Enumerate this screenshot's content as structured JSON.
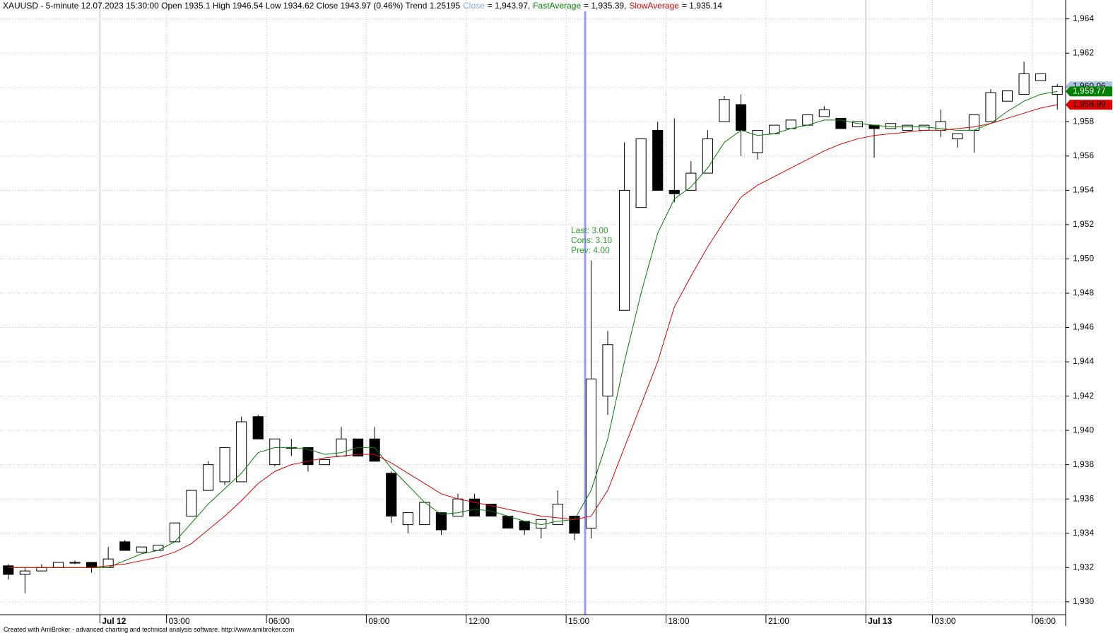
{
  "chart_data": {
    "type": "candlestick",
    "header": [
      {
        "text": "XAUUSD - 5-minute 12.07.2023 15:30:00 Open 1935.1 High 1946.54 Low 1934.62 Close 1943.97 (0.46%) Trend 1.25195",
        "color": "#000000"
      },
      {
        "text": "Close",
        "color": "#87a9c9"
      },
      {
        "text": "= 1,943.97,",
        "color": "#000000"
      },
      {
        "text": "FastAverage",
        "color": "#008000"
      },
      {
        "text": "= 1,935.39,",
        "color": "#000000"
      },
      {
        "text": "SlowAverage",
        "color": "#e00000"
      },
      {
        "text": "= 1,935.14",
        "color": "#000000"
      }
    ],
    "annotation": [
      "Last: 3.00",
      "Cons: 3.10",
      "Prev: 4.00"
    ],
    "annotation_color": "#2ca02c",
    "footer": "Created with AmiBroker - advanced charting and technical analysis software. http://www.amibroker.com",
    "categories": [
      null,
      null,
      null,
      null,
      null,
      null,
      "Jul 12",
      null,
      null,
      null,
      "03:00",
      null,
      null,
      null,
      null,
      null,
      "06:00",
      null,
      null,
      null,
      null,
      null,
      "09:00",
      null,
      null,
      null,
      null,
      null,
      "12:00",
      null,
      null,
      null,
      null,
      null,
      "15:00",
      null,
      null,
      null,
      null,
      null,
      "18:00",
      null,
      null,
      null,
      null,
      null,
      "21:00",
      null,
      null,
      null,
      null,
      null,
      "Jul 13",
      null,
      null,
      null,
      "03:00",
      null,
      null,
      null,
      null,
      null,
      "06:00",
      null
    ],
    "bold_categories": [
      "Jul 12",
      "Jul 13"
    ],
    "open": [
      1932.1,
      1931.6,
      1931.8,
      1932.0,
      1932.3,
      1932.3,
      1932.0,
      1933.5,
      1932.9,
      1933.0,
      1933.5,
      1935.0,
      1936.5,
      1937.0,
      1937.0,
      1940.8,
      1938.0,
      1939.0,
      1939.0,
      1938.0,
      1938.5,
      1939.5,
      1939.5,
      1937.5,
      1934.5,
      1934.5,
      1935.2,
      1935.0,
      1936.0,
      1935.7,
      1935.0,
      1934.7,
      1934.3,
      1934.5,
      1935.0,
      1934.3,
      1942.0,
      1947.0,
      1953.0,
      1957.5,
      1954.0,
      1954.0,
      1955.0,
      1958.0,
      1959.0,
      1956.2,
      1957.3,
      1957.6,
      1957.8,
      1958.3,
      1958.2,
      1957.7,
      1957.8,
      1957.6,
      1957.5,
      1957.5,
      1957.5,
      1957.0,
      1957.5,
      1958.0,
      1959.2,
      1959.6,
      1960.4,
      1959.6
    ],
    "high": [
      1932.2,
      1932.0,
      1932.2,
      1932.3,
      1932.4,
      1932.3,
      1933.2,
      1933.6,
      1933.2,
      1933.3,
      1934.6,
      1936.5,
      1938.2,
      1939.0,
      1940.8,
      1940.9,
      1939.5,
      1939.5,
      1939.0,
      1938.3,
      1940.2,
      1939.5,
      1940.2,
      1937.6,
      1935.2,
      1935.8,
      1935.2,
      1936.3,
      1936.3,
      1935.7,
      1935.0,
      1934.7,
      1934.8,
      1936.5,
      1935.0,
      1949.9,
      1945.8,
      1956.8,
      1957.0,
      1958.0,
      1958.2,
      1955.7,
      1957.5,
      1959.5,
      1959.6,
      1957.5,
      1957.8,
      1958.1,
      1958.4,
      1958.9,
      1958.2,
      1958.0,
      1957.8,
      1957.9,
      1957.8,
      1957.8,
      1958.7,
      1957.3,
      1958.4,
      1959.9,
      1959.8,
      1961.5,
      1960.8,
      1960.2
    ],
    "low": [
      1931.3,
      1930.5,
      1931.8,
      1932.0,
      1932.2,
      1931.7,
      1932.0,
      1933.0,
      1932.9,
      1933.0,
      1933.5,
      1935.0,
      1936.5,
      1936.8,
      1937.0,
      1939.5,
      1937.9,
      1938.5,
      1937.6,
      1938.0,
      1938.5,
      1938.5,
      1938.2,
      1934.6,
      1934.0,
      1934.5,
      1933.9,
      1935.0,
      1935.0,
      1935.0,
      1934.3,
      1933.9,
      1933.7,
      1934.5,
      1933.6,
      1933.7,
      1940.9,
      1947.0,
      1953.0,
      1954.0,
      1953.3,
      1954.0,
      1955.0,
      1958.0,
      1956.0,
      1955.8,
      1957.3,
      1957.6,
      1957.8,
      1958.3,
      1957.6,
      1957.7,
      1955.9,
      1957.6,
      1957.5,
      1957.5,
      1957.1,
      1956.5,
      1956.2,
      1958.0,
      1959.2,
      1959.6,
      1960.4,
      1958.7
    ],
    "close": [
      1931.6,
      1931.8,
      1932.0,
      1932.3,
      1932.3,
      1932.0,
      1932.5,
      1933.0,
      1933.2,
      1933.3,
      1934.6,
      1936.5,
      1938.0,
      1939.0,
      1940.5,
      1939.5,
      1939.5,
      1939.0,
      1938.0,
      1938.3,
      1939.5,
      1938.5,
      1938.2,
      1935.0,
      1935.2,
      1935.8,
      1934.2,
      1936.0,
      1935.0,
      1935.0,
      1934.3,
      1934.2,
      1934.8,
      1935.7,
      1934.0,
      1943.0,
      1945.0,
      1954.0,
      1957.0,
      1954.0,
      1953.8,
      1955.0,
      1957.0,
      1959.3,
      1957.5,
      1957.5,
      1957.8,
      1958.1,
      1958.4,
      1958.7,
      1957.6,
      1958.0,
      1957.6,
      1957.9,
      1957.8,
      1957.8,
      1958.0,
      1957.3,
      1958.4,
      1959.7,
      1959.8,
      1960.8,
      1960.8,
      1960.06
    ],
    "up_color": "#ffffff",
    "down_color": "#000000",
    "series": [
      {
        "name": "FastAverage",
        "color": "#008000",
        "values": [
          1932.0,
          1932.0,
          1932.0,
          1932.0,
          1932.0,
          1932.0,
          1932.0,
          1932.4,
          1932.8,
          1933.0,
          1933.5,
          1934.6,
          1935.7,
          1936.6,
          1937.5,
          1938.7,
          1939.0,
          1939.0,
          1938.9,
          1938.6,
          1938.7,
          1939.0,
          1939.0,
          1937.8,
          1936.8,
          1935.8,
          1935.1,
          1935.2,
          1935.4,
          1935.3,
          1935.0,
          1934.7,
          1934.5,
          1934.7,
          1934.8,
          1936.5,
          1939.5,
          1944.0,
          1948.0,
          1951.5,
          1953.5,
          1954.2,
          1955.3,
          1956.8,
          1957.5,
          1957.2,
          1957.3,
          1957.6,
          1957.8,
          1958.1,
          1958.1,
          1957.9,
          1957.8,
          1957.7,
          1957.7,
          1957.7,
          1957.6,
          1957.5,
          1957.5,
          1957.9,
          1958.6,
          1959.2,
          1959.6,
          1959.77
        ]
      },
      {
        "name": "SlowAverage",
        "color": "#e00000",
        "values": [
          1932.0,
          1932.0,
          1932.0,
          1932.0,
          1932.0,
          1932.0,
          1932.1,
          1932.2,
          1932.4,
          1932.6,
          1932.9,
          1933.4,
          1934.2,
          1935.0,
          1935.9,
          1936.9,
          1937.6,
          1938.0,
          1938.2,
          1938.4,
          1938.5,
          1938.6,
          1938.6,
          1938.1,
          1937.5,
          1936.9,
          1936.3,
          1936.0,
          1935.8,
          1935.6,
          1935.4,
          1935.2,
          1935.0,
          1934.9,
          1934.8,
          1935.0,
          1936.5,
          1939.0,
          1941.5,
          1944.0,
          1947.2,
          1949.0,
          1950.7,
          1952.2,
          1953.6,
          1954.3,
          1954.8,
          1955.3,
          1955.8,
          1956.3,
          1956.7,
          1957.0,
          1957.2,
          1957.3,
          1957.4,
          1957.5,
          1957.5,
          1957.6,
          1957.7,
          1957.9,
          1958.2,
          1958.5,
          1958.8,
          1958.99
        ]
      }
    ],
    "price_tags": [
      {
        "value": 1960.06,
        "label": "1,960.06",
        "color": "#a9c3de",
        "text_color": "#000000"
      },
      {
        "value": 1959.77,
        "label": "1,959.77",
        "color": "#008000",
        "text_color": "#ffffff"
      },
      {
        "value": 1958.99,
        "label": "1,958.99",
        "color": "#e00000",
        "text_color": "#000000"
      }
    ],
    "ylim": [
      1929.25,
      1965.1
    ],
    "yticks": [
      {
        "value": 1930,
        "label": "1,930"
      },
      {
        "value": 1932,
        "label": "1,932"
      },
      {
        "value": 1934,
        "label": "1,934"
      },
      {
        "value": 1936,
        "label": "1,936"
      },
      {
        "value": 1938,
        "label": "1,938"
      },
      {
        "value": 1940,
        "label": "1,940"
      },
      {
        "value": 1942,
        "label": "1,942"
      },
      {
        "value": 1944,
        "label": "1,944"
      },
      {
        "value": 1946,
        "label": "1,946"
      },
      {
        "value": 1948,
        "label": "1,948"
      },
      {
        "value": 1950,
        "label": "1,950"
      },
      {
        "value": 1952,
        "label": "1,952"
      },
      {
        "value": 1954,
        "label": "1,954"
      },
      {
        "value": 1956,
        "label": "1,956"
      },
      {
        "value": 1958,
        "label": "1,958"
      },
      {
        "value": 1960,
        "label": "1,960"
      },
      {
        "value": 1962,
        "label": "1,962"
      },
      {
        "value": 1964,
        "label": "1,964"
      }
    ],
    "grid": true
  }
}
